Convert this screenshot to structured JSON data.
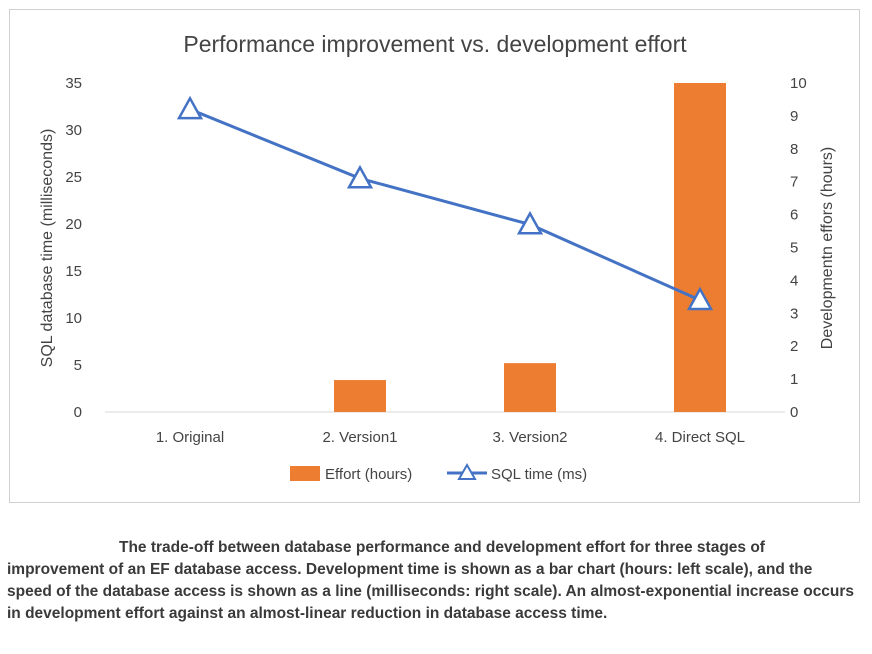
{
  "chart_data": {
    "type": "bar+line",
    "title": "Performance improvement vs. development effort",
    "categories": [
      "1. Original",
      "2. Version1",
      "3. Version2",
      "4. Direct SQL"
    ],
    "left_axis": {
      "label": "SQL database time (milliseconds)",
      "ylim": [
        0,
        35
      ],
      "ticks": [
        0,
        5,
        10,
        15,
        20,
        25,
        30,
        35
      ]
    },
    "right_axis": {
      "label": "Developmentn effors (hours)",
      "ylim": [
        0,
        10
      ],
      "ticks": [
        0,
        1,
        2,
        3,
        4,
        5,
        6,
        7,
        8,
        9,
        10
      ]
    },
    "series": [
      {
        "name": "Effort (hours)",
        "kind": "bar",
        "axis": "left",
        "color": "#ED7D31",
        "values": [
          0,
          3.4,
          5.2,
          35
        ]
      },
      {
        "name": "SQL time (ms)",
        "kind": "line",
        "axis": "right",
        "color": "#4472C4",
        "marker": "triangle",
        "values": [
          9.2,
          7.1,
          5.7,
          3.4
        ]
      }
    ],
    "grid": false,
    "legend_position": "bottom"
  },
  "caption": {
    "text": "The trade-off between database performance and development effort for three stages of improvement of an EF database access. Development time is shown as a bar chart (hours: left scale), and the speed of the database access is shown as a line (milliseconds: right scale). An almost-exponential increase occurs in development effort against an almost-linear reduction in database access time."
  }
}
